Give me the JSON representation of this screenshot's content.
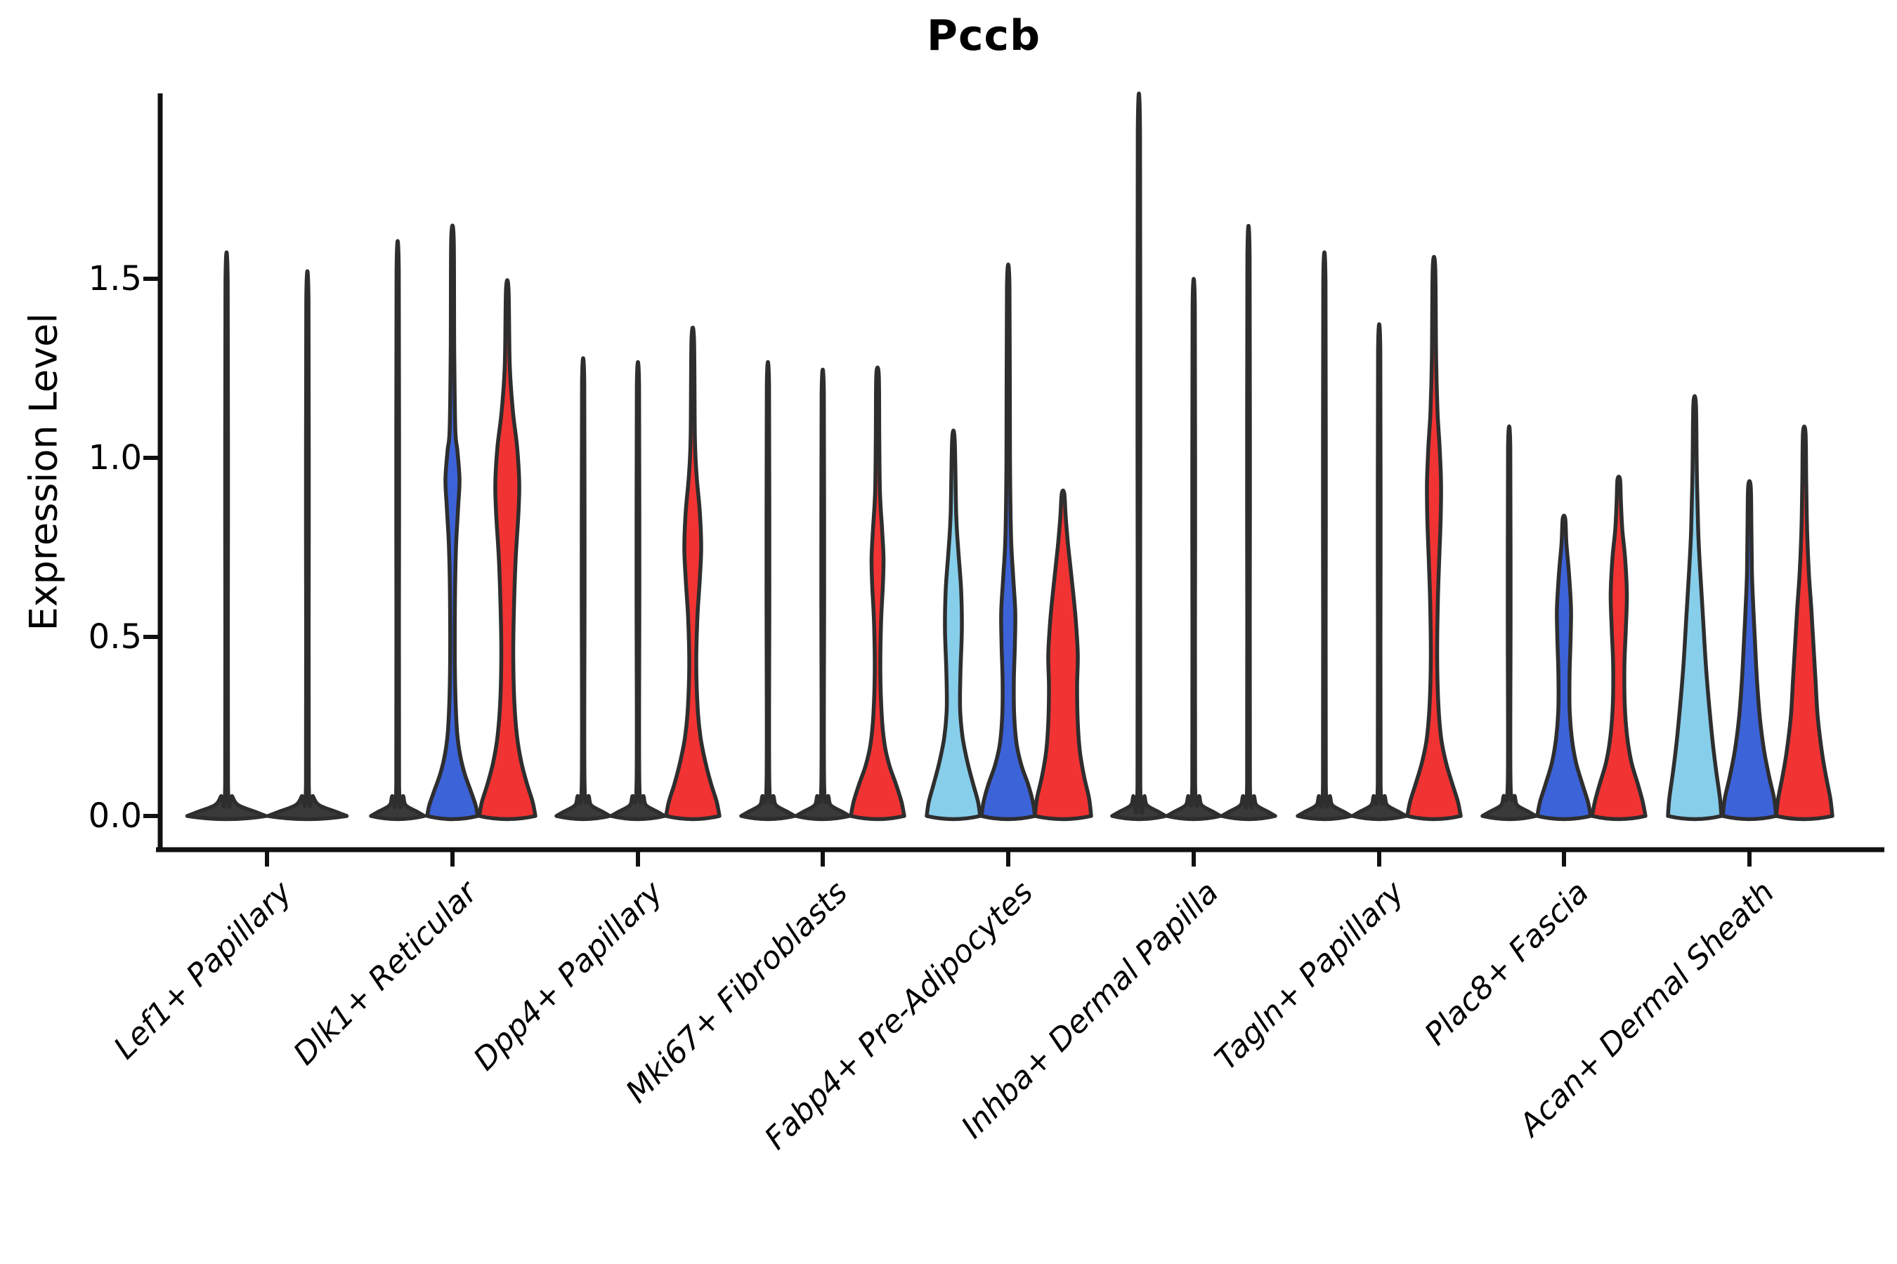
{
  "chart_data": {
    "type": "violin",
    "title": "Pccb",
    "ylabel": "Expression Level",
    "ytick_labels": [
      "0.0",
      "0.5",
      "1.0",
      "1.5"
    ],
    "ytick_values": [
      0.0,
      0.5,
      1.0,
      1.5
    ],
    "ylim": [
      0,
      2.0
    ],
    "grid": "off",
    "legend": "none",
    "categories": [
      "Lef1+ Papillary",
      "Dlk1+ Reticular",
      "Dpp4+ Papillary",
      "Mki67+ Fibroblasts",
      "Fabp4+ Pre-Adipocytes",
      "Inhba+ Dermal Papilla",
      "Tagln+ Papillary",
      "Plac8+ Fascia",
      "Acan+ Dermal Sheath"
    ],
    "colors": {
      "lightblue": "#87CEEB",
      "blue": "#3D63D9",
      "red": "#F23333",
      "dark": "#3A3A3A",
      "outline": "#2E2E2E",
      "axis": "#111111"
    },
    "groups": [
      {
        "category": "Lef1+ Papillary",
        "violins": [
          {
            "color_key": "dark",
            "collapsed": true,
            "max": 1.49,
            "base_halfwidth": 56
          },
          {
            "color_key": "dark",
            "collapsed": true,
            "max": 1.44,
            "base_halfwidth": 56
          }
        ]
      },
      {
        "category": "Dlk1+ Reticular",
        "violins": [
          {
            "color_key": "dark",
            "collapsed": true,
            "max": 1.52,
            "base_halfwidth": 38
          },
          {
            "color_key": "blue",
            "collapsed": false,
            "max": 1.61,
            "profile": [
              [
                0,
                36
              ],
              [
                0.03,
                33
              ],
              [
                0.07,
                26
              ],
              [
                0.12,
                17
              ],
              [
                0.18,
                10
              ],
              [
                0.25,
                6
              ],
              [
                0.4,
                3.5
              ],
              [
                0.6,
                3.5
              ],
              [
                0.75,
                5
              ],
              [
                0.86,
                8
              ],
              [
                0.94,
                10
              ],
              [
                1.02,
                7
              ],
              [
                1.08,
                4
              ],
              [
                1.3,
                2.5
              ],
              [
                1.61,
                1.8
              ]
            ]
          },
          {
            "color_key": "red",
            "collapsed": false,
            "max": 1.47,
            "profile": [
              [
                0,
                40
              ],
              [
                0.04,
                36
              ],
              [
                0.09,
                28
              ],
              [
                0.15,
                20
              ],
              [
                0.22,
                14
              ],
              [
                0.32,
                10
              ],
              [
                0.45,
                8.5
              ],
              [
                0.58,
                9.5
              ],
              [
                0.72,
                12
              ],
              [
                0.85,
                16
              ],
              [
                0.93,
                17
              ],
              [
                1.03,
                14
              ],
              [
                1.13,
                8
              ],
              [
                1.26,
                3.5
              ],
              [
                1.47,
                1.8
              ]
            ]
          }
        ]
      },
      {
        "category": "Dpp4+ Papillary",
        "violins": [
          {
            "color_key": "dark",
            "collapsed": true,
            "max": 1.21,
            "base_halfwidth": 38
          },
          {
            "color_key": "dark",
            "collapsed": true,
            "max": 1.2,
            "base_halfwidth": 38
          },
          {
            "color_key": "red",
            "collapsed": false,
            "max": 1.33,
            "profile": [
              [
                0,
                38
              ],
              [
                0.04,
                34
              ],
              [
                0.09,
                26
              ],
              [
                0.15,
                18
              ],
              [
                0.22,
                11
              ],
              [
                0.3,
                7
              ],
              [
                0.42,
                5
              ],
              [
                0.55,
                6.5
              ],
              [
                0.66,
                10
              ],
              [
                0.75,
                12
              ],
              [
                0.85,
                10
              ],
              [
                0.95,
                5.5
              ],
              [
                1.06,
                3
              ],
              [
                1.33,
                1.8
              ]
            ]
          }
        ]
      },
      {
        "category": "Mki67+ Fibroblasts",
        "violins": [
          {
            "color_key": "dark",
            "collapsed": true,
            "max": 1.2,
            "base_halfwidth": 38
          },
          {
            "color_key": "dark",
            "collapsed": true,
            "max": 1.18,
            "base_halfwidth": 38
          },
          {
            "color_key": "red",
            "collapsed": false,
            "max": 1.23,
            "profile": [
              [
                0,
                38
              ],
              [
                0.04,
                34
              ],
              [
                0.09,
                26
              ],
              [
                0.14,
                17
              ],
              [
                0.2,
                10
              ],
              [
                0.28,
                6
              ],
              [
                0.4,
                4
              ],
              [
                0.54,
                5
              ],
              [
                0.64,
                7.5
              ],
              [
                0.72,
                8.5
              ],
              [
                0.8,
                6.5
              ],
              [
                0.9,
                3.5
              ],
              [
                1.05,
                2.5
              ],
              [
                1.23,
                1.8
              ]
            ]
          }
        ]
      },
      {
        "category": "Fabp4+ Pre-Adipocytes",
        "violins": [
          {
            "color_key": "lightblue",
            "collapsed": false,
            "max": 1.05,
            "profile": [
              [
                0,
                38
              ],
              [
                0.04,
                35
              ],
              [
                0.09,
                28
              ],
              [
                0.15,
                20
              ],
              [
                0.22,
                13
              ],
              [
                0.3,
                9.5
              ],
              [
                0.4,
                10
              ],
              [
                0.52,
                12
              ],
              [
                0.63,
                11
              ],
              [
                0.74,
                7
              ],
              [
                0.84,
                4
              ],
              [
                1.05,
                1.8
              ]
            ]
          },
          {
            "color_key": "blue",
            "collapsed": false,
            "max": 1.48,
            "profile": [
              [
                0,
                38
              ],
              [
                0.04,
                35
              ],
              [
                0.09,
                28
              ],
              [
                0.14,
                19
              ],
              [
                0.2,
                12
              ],
              [
                0.28,
                8.5
              ],
              [
                0.38,
                8
              ],
              [
                0.48,
                9.5
              ],
              [
                0.57,
                10
              ],
              [
                0.67,
                7
              ],
              [
                0.78,
                4
              ],
              [
                1.0,
                2.5
              ],
              [
                1.48,
                1.8
              ]
            ]
          },
          {
            "color_key": "red",
            "collapsed": false,
            "max": 0.9,
            "profile": [
              [
                0,
                40
              ],
              [
                0.05,
                37
              ],
              [
                0.11,
                30
              ],
              [
                0.18,
                24
              ],
              [
                0.26,
                21
              ],
              [
                0.36,
                20
              ],
              [
                0.45,
                21
              ],
              [
                0.55,
                18
              ],
              [
                0.65,
                13
              ],
              [
                0.75,
                7.5
              ],
              [
                0.83,
                4
              ],
              [
                0.9,
                1.8
              ]
            ]
          }
        ]
      },
      {
        "category": "Inhba+ Dermal Papilla",
        "violins": [
          {
            "color_key": "dark",
            "collapsed": true,
            "max": 1.91,
            "base_halfwidth": 38
          },
          {
            "color_key": "dark",
            "collapsed": true,
            "max": 1.42,
            "base_halfwidth": 38
          },
          {
            "color_key": "dark",
            "collapsed": true,
            "max": 1.56,
            "base_halfwidth": 38
          }
        ]
      },
      {
        "category": "Tagln+ Papillary",
        "violins": [
          {
            "color_key": "dark",
            "collapsed": true,
            "max": 1.49,
            "base_halfwidth": 38
          },
          {
            "color_key": "dark",
            "collapsed": true,
            "max": 1.3,
            "base_halfwidth": 38
          },
          {
            "color_key": "red",
            "collapsed": false,
            "max": 1.53,
            "profile": [
              [
                0,
                38
              ],
              [
                0.04,
                34
              ],
              [
                0.09,
                26
              ],
              [
                0.15,
                17
              ],
              [
                0.22,
                10
              ],
              [
                0.32,
                6
              ],
              [
                0.45,
                4.5
              ],
              [
                0.6,
                5.5
              ],
              [
                0.72,
                7.5
              ],
              [
                0.83,
                9.5
              ],
              [
                0.93,
                10
              ],
              [
                1.03,
                8
              ],
              [
                1.13,
                5
              ],
              [
                1.28,
                3
              ],
              [
                1.53,
                1.8
              ]
            ]
          }
        ]
      },
      {
        "category": "Plac8+ Fascia",
        "violins": [
          {
            "color_key": "dark",
            "collapsed": true,
            "max": 1.03,
            "base_halfwidth": 38
          },
          {
            "color_key": "blue",
            "collapsed": false,
            "max": 0.83,
            "profile": [
              [
                0,
                38
              ],
              [
                0.04,
                34
              ],
              [
                0.09,
                26
              ],
              [
                0.15,
                17
              ],
              [
                0.22,
                11
              ],
              [
                0.3,
                8
              ],
              [
                0.4,
                8
              ],
              [
                0.5,
                9.5
              ],
              [
                0.58,
                10
              ],
              [
                0.68,
                7
              ],
              [
                0.76,
                3.5
              ],
              [
                0.83,
                1.8
              ]
            ]
          },
          {
            "color_key": "red",
            "collapsed": false,
            "max": 0.94,
            "profile": [
              [
                0,
                38
              ],
              [
                0.04,
                34
              ],
              [
                0.09,
                27
              ],
              [
                0.15,
                18
              ],
              [
                0.22,
                12
              ],
              [
                0.31,
                8.5
              ],
              [
                0.42,
                8
              ],
              [
                0.52,
                10
              ],
              [
                0.62,
                11.5
              ],
              [
                0.72,
                9
              ],
              [
                0.8,
                5
              ],
              [
                0.88,
                3
              ],
              [
                0.94,
                1.8
              ]
            ]
          }
        ]
      },
      {
        "category": "Acan+ Dermal Sheath",
        "violins": [
          {
            "color_key": "lightblue",
            "collapsed": false,
            "max": 1.15,
            "profile": [
              [
                0,
                38
              ],
              [
                0.05,
                36
              ],
              [
                0.12,
                31
              ],
              [
                0.2,
                26
              ],
              [
                0.3,
                21
              ],
              [
                0.42,
                16
              ],
              [
                0.55,
                12
              ],
              [
                0.68,
                8
              ],
              [
                0.8,
                5
              ],
              [
                0.97,
                3
              ],
              [
                1.15,
                1.8
              ]
            ]
          },
          {
            "color_key": "blue",
            "collapsed": false,
            "max": 0.92,
            "profile": [
              [
                0,
                38
              ],
              [
                0.05,
                35
              ],
              [
                0.11,
                28
              ],
              [
                0.18,
                21
              ],
              [
                0.27,
                15
              ],
              [
                0.37,
                11
              ],
              [
                0.48,
                8
              ],
              [
                0.58,
                5.5
              ],
              [
                0.68,
                3.5
              ],
              [
                0.8,
                2.8
              ],
              [
                0.92,
                1.8
              ]
            ]
          },
          {
            "color_key": "red",
            "collapsed": false,
            "max": 1.07,
            "profile": [
              [
                0,
                40
              ],
              [
                0.05,
                37
              ],
              [
                0.11,
                31
              ],
              [
                0.18,
                25
              ],
              [
                0.28,
                19
              ],
              [
                0.38,
                16
              ],
              [
                0.48,
                13
              ],
              [
                0.58,
                10
              ],
              [
                0.68,
                6.5
              ],
              [
                0.8,
                4
              ],
              [
                0.93,
                2.8
              ],
              [
                1.07,
                1.8
              ]
            ]
          }
        ]
      }
    ]
  }
}
